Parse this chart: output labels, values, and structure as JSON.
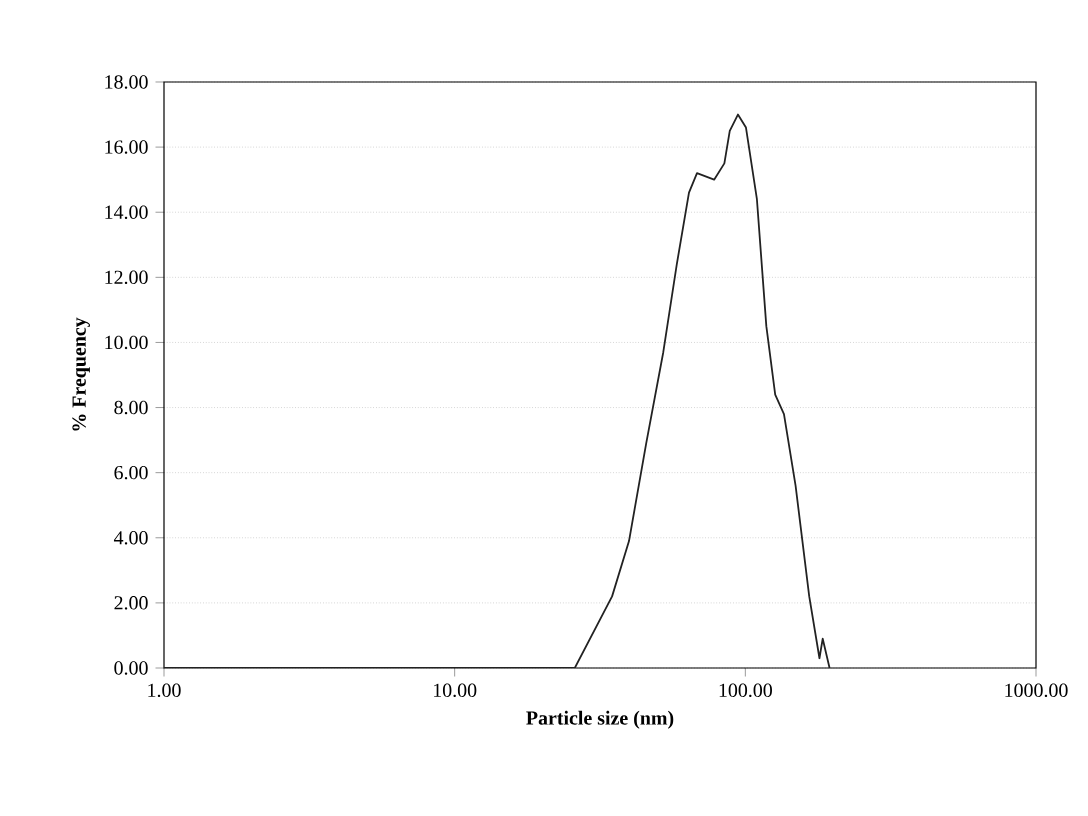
{
  "chart_data": {
    "type": "line",
    "xlabel": "Particle size (nm)",
    "ylabel": "% Frequency",
    "log": "x",
    "grid": "y",
    "color": "#222222",
    "x": [
      1,
      25.9,
      34.8,
      39.8,
      45.6,
      52.2,
      58.1,
      64.0,
      68.2,
      78.1,
      84.7,
      88.4,
      94.3,
      100.5,
      109.6,
      118.1,
      126.7,
      135.8,
      148.9,
      165.9,
      179.9,
      184.6,
      194.9
    ],
    "values": [
      0,
      0,
      2.2,
      3.9,
      6.9,
      9.7,
      12.4,
      14.6,
      15.2,
      15.0,
      15.5,
      16.5,
      17.0,
      16.6,
      14.4,
      10.5,
      8.4,
      7.8,
      5.6,
      2.2,
      0.3,
      0.9,
      0
    ],
    "xlim": [
      1,
      1000
    ],
    "ylim": [
      0,
      18
    ],
    "xticks": [
      {
        "value": 1,
        "label": "1.00"
      },
      {
        "value": 10,
        "label": "10.00"
      },
      {
        "value": 100,
        "label": "100.00"
      },
      {
        "value": 1000,
        "label": "1000.00"
      }
    ],
    "yticks": [
      {
        "value": 0,
        "label": "0.00"
      },
      {
        "value": 2,
        "label": "2.00"
      },
      {
        "value": 4,
        "label": "4.00"
      },
      {
        "value": 6,
        "label": "6.00"
      },
      {
        "value": 8,
        "label": "8.00"
      },
      {
        "value": 10,
        "label": "10.00"
      },
      {
        "value": 12,
        "label": "12.00"
      },
      {
        "value": 14,
        "label": "14.00"
      },
      {
        "value": 16,
        "label": "16.00"
      },
      {
        "value": 18,
        "label": "18.00"
      }
    ]
  }
}
